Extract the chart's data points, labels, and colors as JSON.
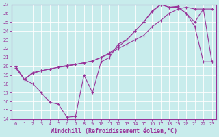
{
  "xlabel": "Windchill (Refroidissement éolien,°C)",
  "bg_color": "#c8ecec",
  "line_color": "#993399",
  "grid_color": "#ffffff",
  "xlim": [
    -0.5,
    23.5
  ],
  "ylim": [
    14,
    27
  ],
  "xticks": [
    0,
    1,
    2,
    3,
    4,
    5,
    6,
    7,
    8,
    9,
    10,
    11,
    12,
    13,
    14,
    15,
    16,
    17,
    18,
    19,
    20,
    21,
    22,
    23
  ],
  "yticks": [
    14,
    15,
    16,
    17,
    18,
    19,
    20,
    21,
    22,
    23,
    24,
    25,
    26,
    27
  ],
  "line1_x": [
    0,
    1,
    2,
    3,
    4,
    5,
    6,
    7,
    8,
    9,
    10,
    11,
    12,
    13,
    14,
    15,
    16,
    17,
    18,
    19,
    20,
    21,
    22,
    23
  ],
  "line1_y": [
    20,
    18.5,
    18,
    17,
    15.9,
    15.7,
    14.2,
    14.3,
    19,
    17,
    20.5,
    21,
    22.5,
    23,
    24,
    25,
    26.2,
    27,
    26.7,
    26.7,
    26,
    24.5,
    20.5,
    20.5
  ],
  "line2_x": [
    0,
    1,
    2,
    3,
    4,
    5,
    6,
    7,
    8,
    9,
    10,
    11,
    12,
    13,
    14,
    15,
    16,
    17,
    18,
    19,
    20,
    21,
    22,
    23
  ],
  "line2_y": [
    19.8,
    18.5,
    19.2,
    19.5,
    19.7,
    19.9,
    20.1,
    20.2,
    20.4,
    20.6,
    21.0,
    21.4,
    22.0,
    22.5,
    23.0,
    23.5,
    24.5,
    25.2,
    26.0,
    26.5,
    26.7,
    26.5,
    26.5,
    20.5
  ],
  "line3_x": [
    0,
    1,
    2,
    3,
    4,
    5,
    6,
    7,
    8,
    9,
    10,
    11,
    12,
    13,
    14,
    15,
    16,
    17,
    18,
    19,
    20,
    21,
    22,
    23
  ],
  "line3_y": [
    20,
    18.5,
    19.3,
    19.5,
    19.7,
    19.9,
    20.0,
    20.2,
    20.4,
    20.6,
    21.0,
    21.5,
    22.2,
    23.0,
    24.0,
    25.0,
    26.3,
    27.0,
    26.7,
    26.8,
    26.0,
    25.0,
    26.5,
    26.5
  ]
}
